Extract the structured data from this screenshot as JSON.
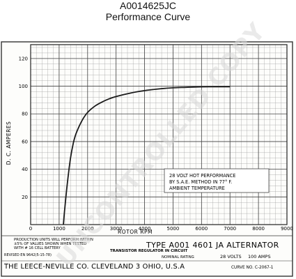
{
  "header": {
    "title": "A0014625JC",
    "subtitle": "Performance Curve"
  },
  "watermark": "UNCONTROLLED COPY",
  "chart_data": {
    "type": "line",
    "title": "TYPE A001 4601 JA ALTERNATOR",
    "xlabel": "ROTOR RPM",
    "ylabel": "D. C. AMPERES",
    "xlim": [
      0,
      9000
    ],
    "ylim": [
      0,
      130
    ],
    "x_ticks": [
      {
        "value": 0,
        "label": "0"
      },
      {
        "value": 1000,
        "label": "1000"
      },
      {
        "value": 2000,
        "label": "2000"
      },
      {
        "value": 3000,
        "label": "3000"
      },
      {
        "value": 4000,
        "label": "4000"
      },
      {
        "value": 5000,
        "label": "5000"
      },
      {
        "value": 6000,
        "label": "6000"
      },
      {
        "value": 7000,
        "label": "7000"
      },
      {
        "value": 8000,
        "label": "8000"
      },
      {
        "value": 9000,
        "label": "9000"
      }
    ],
    "y_ticks": [
      {
        "value": 20,
        "label": "20"
      },
      {
        "value": 40,
        "label": "40"
      },
      {
        "value": 60,
        "label": "60"
      },
      {
        "value": 80,
        "label": "80"
      },
      {
        "value": 100,
        "label": "100"
      },
      {
        "value": 120,
        "label": "120"
      }
    ],
    "grid": true,
    "series": [
      {
        "name": "",
        "x": [
          1150,
          1200,
          1300,
          1400,
          1500,
          1600,
          1800,
          2000,
          2250,
          2500,
          2750,
          3000,
          3500,
          4000,
          4500,
          5000,
          5500,
          6000,
          6500,
          7000
        ],
        "y": [
          0,
          12,
          32,
          48,
          59,
          66,
          75,
          81,
          85.5,
          88.5,
          90.8,
          92.5,
          95,
          96.8,
          98,
          98.8,
          99.2,
          99.5,
          99.6,
          99.6
        ]
      }
    ],
    "annotation": {
      "lines": [
        "28 VOLT HOT PERFORMANCE",
        "BY S.A.E. METHOD IN 77° F.",
        "AMBIENT TEMPERATURE"
      ]
    }
  },
  "title_block": {
    "note_lines": [
      "PRODUCTION UNITS WILL PERFORM WITHIN",
      "±5% OF VALUES SHOWN WHEN TESTED",
      "WITH # 16 CELL BATTERY"
    ],
    "revision": "REVISED EN 9642(5-15-78)",
    "type_label": "TYPE A001 4601 JA ALTERNATOR",
    "regulator": "TRANSISTOR REGULATOR IN CIRCUIT",
    "nominal_label": "NOMINAL RATING",
    "volts": "28 VOLTS",
    "amps": "100 AMPS",
    "company": "THE LEECE-NEVILLE CO. CLEVELAND 3 OHIO, U.S.A",
    "curve_no": "CURVE NO. C-2067-1"
  }
}
